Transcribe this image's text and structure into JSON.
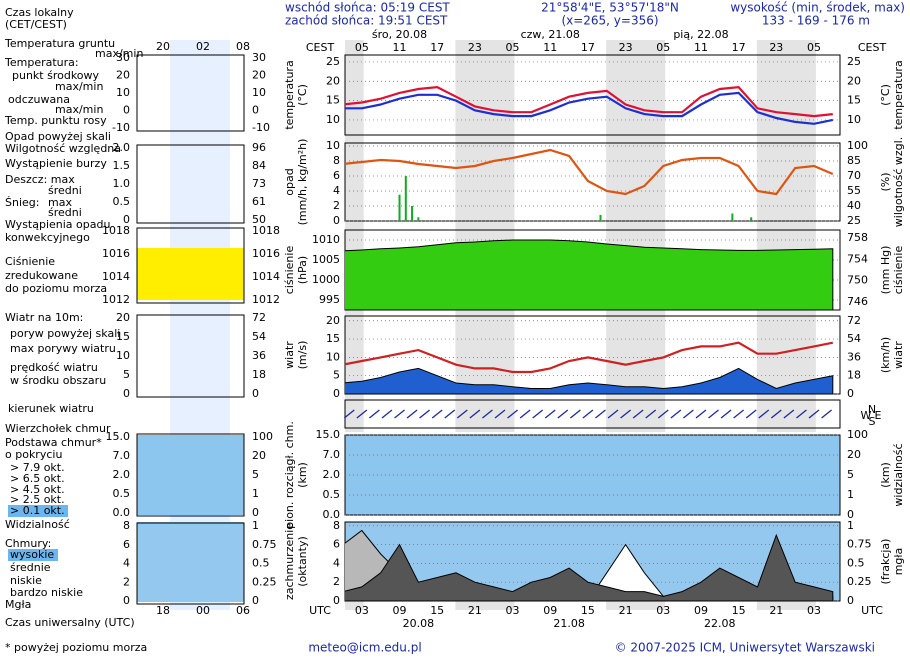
{
  "header": {
    "sunrise": "wschód słońca: 05:19 CEST",
    "sunset": "zachód słońca: 19:51 CEST",
    "coords": "21°58'4\"E, 53°57'18\"N",
    "grid_point": "(x=265, y=356)",
    "elevation_label": "wysokość (min, środek, max)",
    "elevation": "133 - 169 - 176 m"
  },
  "time_axis": {
    "top_unit": "CEST",
    "bottom_unit": "UTC",
    "top_labels": [
      "05",
      "11",
      "17",
      "23",
      "05",
      "11",
      "17",
      "23",
      "05",
      "11",
      "17",
      "23",
      "05"
    ],
    "bottom_labels": [
      "03",
      "09",
      "15",
      "21",
      "03",
      "09",
      "15",
      "21",
      "03",
      "09",
      "15",
      "21",
      "03"
    ],
    "dates_top": [
      "śro, 20.08",
      "czw, 21.08",
      "pią, 22.08"
    ],
    "dates_bottom": [
      "20.08",
      "21.08",
      "22.08"
    ]
  },
  "panels": [
    {
      "ylabel": [
        "temperatura",
        "(°C)"
      ],
      "y2label": [
        "(°C)",
        "temperatura"
      ],
      "ylim": [
        6.1,
        26.8
      ],
      "yticks": [
        10,
        15,
        20,
        25
      ],
      "y2lim": [
        6.1,
        26.8
      ],
      "y2ticks": [
        10,
        15,
        20,
        25
      ]
    },
    {
      "ylabel": [
        "opad",
        "(mm/h, kg/m²h)"
      ],
      "y2label": [
        "(%)",
        "wilgotność wzgl."
      ],
      "ylim": [
        0,
        10.4
      ],
      "yticks": [
        0,
        2,
        4,
        6,
        8,
        10
      ],
      "y2lim": [
        25,
        103
      ],
      "y2ticks": [
        25,
        40,
        55,
        70,
        85,
        100
      ]
    },
    {
      "ylabel": [
        "ciśnienie",
        "(hPa)"
      ],
      "y2label": [
        "(mm Hg)",
        "ciśnienie"
      ],
      "ylim": [
        992.5,
        1012.5
      ],
      "yticks": [
        995,
        1000,
        1005,
        1010
      ],
      "y2lim": [
        744.5,
        759.5
      ],
      "y2ticks": [
        746,
        750,
        754,
        758
      ]
    },
    {
      "ylabel": [
        "wiatr",
        "(m/s)"
      ],
      "y2label": [
        "(km/h)",
        "wiatr"
      ],
      "ylim": [
        0,
        21.3
      ],
      "yticks": [
        0,
        5,
        10,
        15,
        20
      ],
      "y2lim": [
        0,
        76.7
      ],
      "y2ticks": [
        0,
        18,
        36,
        54,
        72
      ]
    },
    {
      "ylabel": [
        "pion. rozciągł. chm.",
        "(km)"
      ],
      "y2label": [
        "(km)",
        "widzialność"
      ],
      "scale": "even-ticks",
      "ylim": [
        0,
        15
      ],
      "yticks": [
        {
          "value": 0,
          "label": "0.0"
        },
        {
          "value": 0.5,
          "label": "0.5"
        },
        {
          "value": 2,
          "label": "2.0"
        },
        {
          "value": 7,
          "label": "7.0"
        },
        {
          "value": 15,
          "label": "15.0"
        }
      ],
      "y2lim": [
        0,
        100
      ],
      "y2ticks": [
        0,
        1,
        5,
        20,
        100
      ]
    },
    {
      "ylabel": [
        "zachmurzenie",
        "(oktanty)"
      ],
      "y2label": [
        "(frakcja)",
        "mgła"
      ],
      "ylim": [
        0,
        8.4
      ],
      "yticks": [
        0,
        2,
        4,
        6,
        8
      ],
      "y2lim": [
        0,
        1.05
      ],
      "y2ticks": [
        0,
        0.25,
        0.5,
        0.75,
        1
      ]
    }
  ],
  "series": [
    {
      "panel": 2,
      "axis": "y",
      "kind": "area",
      "color": "#33cc11",
      "hours": [
        0,
        3,
        6,
        9,
        12,
        15,
        18,
        21,
        24,
        27,
        30,
        33,
        36,
        39,
        42,
        45,
        48,
        51,
        54,
        57,
        60,
        63,
        66,
        69,
        72,
        75,
        78
      ],
      "values": [
        1007.3,
        1007.5,
        1007.8,
        1008,
        1008.3,
        1008.8,
        1009.3,
        1009.5,
        1009.8,
        1010,
        1010,
        1010,
        1009.8,
        1009.5,
        1009,
        1008.6,
        1008.2,
        1008,
        1007.8,
        1007.6,
        1007.5,
        1007.4,
        1007.4,
        1007.5,
        1007.6,
        1007.7,
        1007.8
      ]
    },
    {
      "panel": 3,
      "axis": "y",
      "kind": "area",
      "color": "#1f5fd0",
      "hours": [
        0,
        3,
        6,
        9,
        12,
        15,
        18,
        21,
        24,
        27,
        30,
        33,
        36,
        39,
        42,
        45,
        48,
        51,
        54,
        57,
        60,
        63,
        66,
        69,
        72,
        75,
        78
      ],
      "values": [
        3,
        3.5,
        4.5,
        6,
        7,
        5,
        3,
        2.5,
        2.5,
        2,
        1.5,
        1.5,
        2.5,
        3,
        2.5,
        2,
        2,
        1.5,
        2,
        3,
        4.5,
        7,
        4,
        1.5,
        3,
        4,
        5
      ]
    },
    {
      "panel": 3,
      "axis": "y",
      "kind": "line",
      "color": "#cc2222",
      "hours": [
        0,
        3,
        6,
        9,
        12,
        15,
        18,
        21,
        24,
        27,
        30,
        33,
        36,
        39,
        42,
        45,
        48,
        51,
        54,
        57,
        60,
        63,
        66,
        69,
        72,
        75,
        78
      ],
      "values": [
        8,
        9,
        10,
        11,
        12,
        10,
        8,
        7,
        7,
        6,
        6,
        7,
        9,
        10,
        9,
        8,
        9,
        10,
        12,
        13,
        13,
        14,
        11,
        11,
        12,
        13,
        14
      ]
    },
    {
      "panel": 0,
      "axis": "y",
      "kind": "line",
      "color": "#1c2fd0",
      "hours": [
        0,
        3,
        6,
        9,
        12,
        15,
        18,
        21,
        24,
        27,
        30,
        33,
        36,
        39,
        42,
        45,
        48,
        51,
        54,
        57,
        60,
        63,
        66,
        69,
        72,
        75,
        78
      ],
      "values": [
        13,
        13,
        14,
        15.5,
        16.5,
        16.5,
        15,
        12.5,
        11.5,
        11,
        11,
        12.5,
        14.5,
        15.5,
        16,
        13,
        11.5,
        11,
        11,
        14,
        16.5,
        17,
        12,
        10.5,
        9.5,
        9,
        10
      ]
    },
    {
      "panel": 0,
      "axis": "y",
      "kind": "line",
      "color": "#dd1133",
      "hours": [
        0,
        3,
        6,
        9,
        12,
        15,
        18,
        21,
        24,
        27,
        30,
        33,
        36,
        39,
        42,
        45,
        48,
        51,
        54,
        57,
        60,
        63,
        66,
        69,
        72,
        75,
        78
      ],
      "values": [
        14,
        14.5,
        15.5,
        17,
        18,
        18.5,
        16,
        13.5,
        12.5,
        12,
        12,
        14,
        16,
        17,
        17.5,
        14,
        12.5,
        12,
        12,
        16,
        18,
        18.5,
        13,
        12,
        11.5,
        11,
        11.5
      ]
    },
    {
      "panel": 1,
      "axis": "y",
      "kind": "bar",
      "color": "#11aa22",
      "hours": [
        9,
        10,
        11,
        12,
        41,
        62,
        65
      ],
      "values": [
        3.5,
        6,
        2,
        0.5,
        0.8,
        1.0,
        0.5
      ]
    },
    {
      "panel": 1,
      "axis": "y2",
      "kind": "line",
      "color": "#dd5511",
      "hours": [
        0,
        3,
        6,
        9,
        12,
        15,
        18,
        21,
        24,
        27,
        30,
        33,
        36,
        39,
        42,
        45,
        48,
        51,
        54,
        57,
        60,
        63,
        66,
        69,
        72,
        75,
        78
      ],
      "values": [
        82,
        84,
        86,
        85,
        82,
        80,
        78,
        80,
        85,
        88,
        92,
        96,
        90,
        65,
        55,
        52,
        60,
        80,
        86,
        88,
        88,
        80,
        55,
        52,
        78,
        80,
        72
      ]
    },
    {
      "panel": 5,
      "axis": "y",
      "kind": "area",
      "color": "#b8b8b8",
      "hours": [
        0,
        3,
        6,
        9,
        12,
        15,
        18,
        21,
        24,
        27,
        30,
        33,
        36,
        39,
        42,
        45,
        48,
        51,
        54,
        57,
        60,
        63,
        66,
        69,
        72,
        75,
        78
      ],
      "values": [
        6,
        7.5,
        5,
        3,
        2,
        1,
        0.5,
        0,
        0,
        0,
        0,
        0,
        0,
        0,
        0,
        0,
        0,
        0,
        0,
        0,
        0,
        0,
        0,
        2,
        1,
        0.5,
        0.5
      ]
    },
    {
      "panel": 5,
      "axis": "y",
      "kind": "area",
      "color": "#ffffff",
      "hours": [
        0,
        3,
        6,
        9,
        12,
        15,
        18,
        21,
        24,
        27,
        30,
        33,
        36,
        39,
        42,
        45,
        48,
        51,
        54,
        57,
        60,
        63,
        66,
        69,
        72,
        75,
        78
      ],
      "values": [
        0,
        0,
        0,
        0,
        0,
        0,
        0,
        0,
        0,
        0,
        0,
        0,
        0,
        0,
        3,
        6,
        3,
        0.5,
        0,
        0,
        0,
        0,
        0,
        0,
        0,
        0,
        0
      ]
    },
    {
      "panel": 5,
      "axis": "y",
      "kind": "area",
      "color": "#555555",
      "hours": [
        0,
        3,
        6,
        9,
        12,
        15,
        18,
        21,
        24,
        27,
        30,
        33,
        36,
        39,
        42,
        45,
        48,
        51,
        54,
        57,
        60,
        63,
        66,
        69,
        72,
        75,
        78
      ],
      "values": [
        1,
        1.5,
        3,
        6,
        2,
        2.5,
        3,
        2,
        1.5,
        1,
        2,
        2.5,
        3.5,
        2,
        1.5,
        1,
        1,
        0.5,
        1,
        2,
        3.5,
        2.5,
        1.5,
        7,
        2,
        1.5,
        1
      ]
    }
  ],
  "wind_direction_letters": [
    "N",
    "W",
    "E",
    "S"
  ],
  "side_panel": {
    "time_top": [
      "20",
      "02",
      "08"
    ],
    "time_bottom": [
      "18",
      "00",
      "06"
    ],
    "axes": [
      {
        "left": [
          "30",
          "20",
          "10",
          "0",
          "-10"
        ],
        "right": [
          "30",
          "20",
          "10",
          "0",
          "-10"
        ]
      },
      {
        "left": [
          "2.0",
          "1.5",
          "1.0",
          "0.5",
          "0"
        ],
        "right": [
          "96",
          "84",
          "73",
          "61",
          "50"
        ]
      },
      {
        "left": [
          "1018",
          "1016",
          "1014",
          "1012"
        ],
        "right": [
          "1018",
          "1016",
          "1014",
          "1012"
        ]
      },
      {
        "left": [
          "20",
          "15",
          "10",
          "5",
          "0"
        ],
        "right": [
          "72",
          "54",
          "36",
          "18",
          "0"
        ]
      },
      {
        "left": [
          "15.0",
          "7.0",
          "2.0",
          "0.5",
          "0.0"
        ],
        "right": [
          "100",
          "20",
          "5",
          "1",
          "0"
        ]
      },
      {
        "left": [
          "8",
          "6",
          "4",
          "2",
          "0"
        ],
        "right": [
          "1",
          "0.75",
          "0.5",
          "0.25",
          "0"
        ]
      }
    ],
    "legend": [
      "Czas lokalny",
      "(CET/CEST)",
      "Temperatura gruntu",
      "max/min",
      "Temperatura:",
      "punkt środkowy",
      "max/min",
      "odczuwana",
      "max/min",
      "Temp. punktu rosy",
      "Opad powyżej skali",
      "Wilgotność względna",
      "Wystąpienie burzy",
      "Deszcz: max",
      "średni",
      "Śnieg:",
      "max",
      "średni",
      "Wystąpienia opadu",
      "konwekcyjnego",
      "Ciśnienie",
      "zredukowane",
      "do poziomu morza",
      "Wiatr na 10m:",
      "poryw powyżej skali",
      "max porywy wiatru",
      "prędkość wiatru",
      "w środku obszaru",
      "kierunek wiatru",
      "Wierzchołek chmur",
      "Podstawa chmur*",
      "o pokryciu",
      "> 7.9 okt.",
      "> 6.5 okt.",
      "> 4.5 okt.",
      "> 2.5 okt.",
      "> 0.1 okt.",
      "Widzialność",
      "Chmury:",
      "wysokie",
      "średnie",
      "niskie",
      "bardzo niskie",
      "Mgła",
      "Czas uniwersalny (UTC)",
      "* powyżej poziomu morza"
    ]
  },
  "footer": {
    "email": "meteo@icm.edu.pl",
    "copyright": "© 2007-2025 ICM, Uniwersytet Warszawski"
  }
}
